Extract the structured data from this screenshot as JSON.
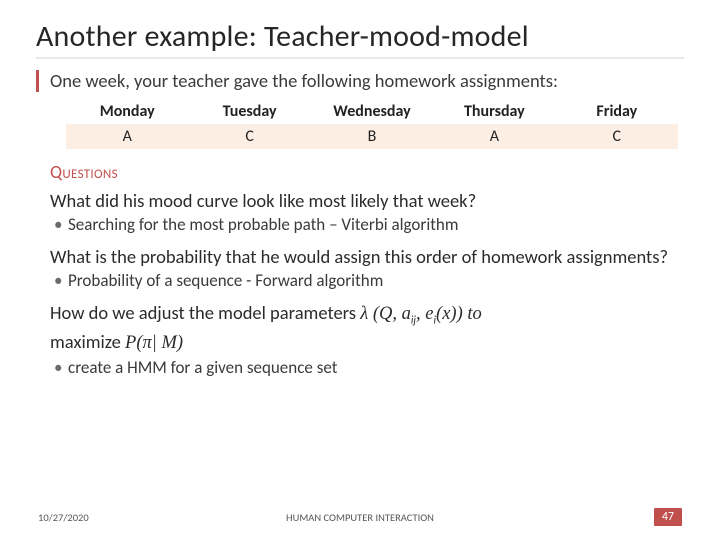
{
  "title": "Another example: Teacher-mood-model",
  "intro": "One week, your teacher gave the following homework assignments:",
  "table": {
    "columns": [
      "Monday",
      "Tuesday",
      "Wednesday",
      "Thursday",
      "Friday"
    ],
    "rows": [
      [
        "A",
        "C",
        "B",
        "A",
        "C"
      ]
    ],
    "header_bg": "#ffffff",
    "row_bg": "#fdeee3",
    "font_size": 16
  },
  "questions_heading": "Questions",
  "questions": {
    "q1": "What did his mood curve look like most likely that week?",
    "a1": "Searching for the most probable path – Viterbi algorithm",
    "q2": "What is the probability that he would assign this order of homework assignments?",
    "a2": "Probability of a sequence - Forward algorithm",
    "q3_pre": "How do we adjust the model parameters ",
    "q3_math": "λ (Q, a",
    "q3_sub1": "ij",
    "q3_mid": ", e",
    "q3_sub2": "i",
    "q3_post": "(x)) to",
    "q3_line2_pre": "maximize ",
    "q3_line2_math": "P(π| M)",
    "a3": "create a HMM for a given sequence set"
  },
  "footer": {
    "date": "10/27/2020",
    "center": "HUMAN COMPUTER INTERACTION",
    "page": "47"
  },
  "colors": {
    "accent": "#c0504d",
    "text": "#2b2b2b",
    "rule": "#e8e8e8",
    "table_row_bg": "#fdeee3"
  }
}
